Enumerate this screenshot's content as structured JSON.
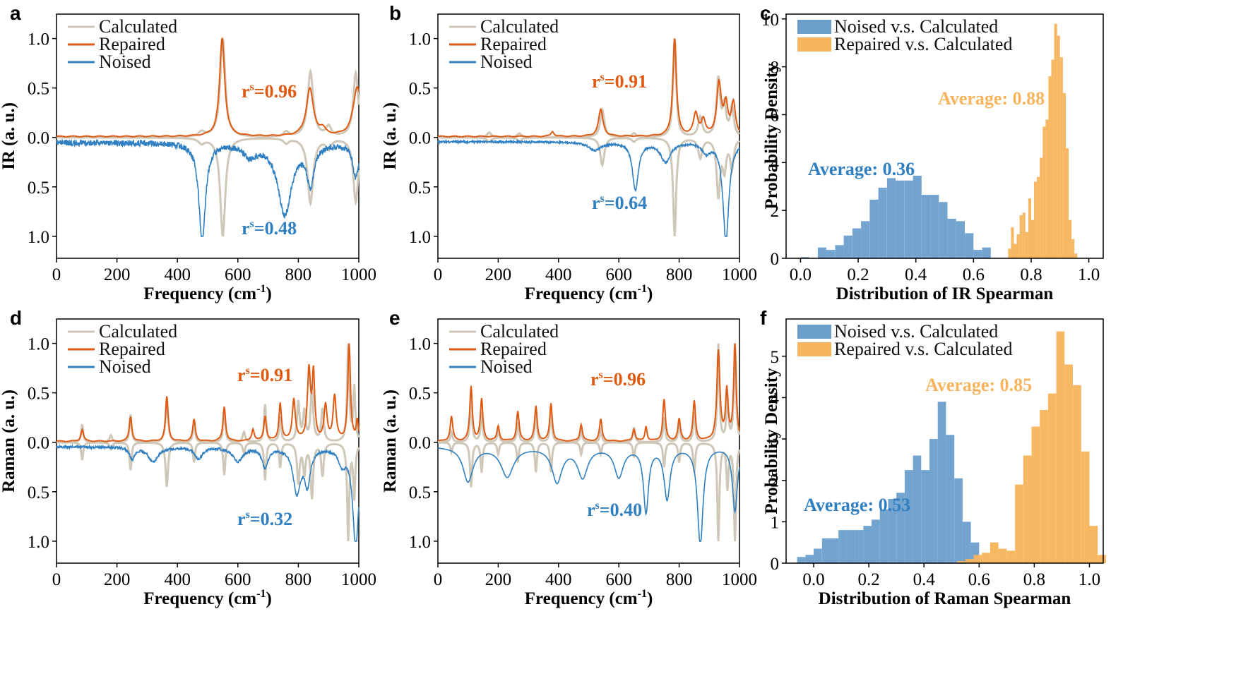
{
  "colors": {
    "calculated": "#cfc8b8",
    "repaired": "#e05a12",
    "noised": "#2f7fc1",
    "hist_noised": "#6c9fcc",
    "hist_repaired": "#f7b45c"
  },
  "chart_data": [
    {
      "id": "a",
      "type": "line",
      "panel_label": "a",
      "xlabel": "Frequency (cm",
      "xlabel_sup": "-1",
      "xlabel_end": ")",
      "ylabel": "IR (a. u.)",
      "xlim": [
        0,
        1000
      ],
      "xticks": [
        "0",
        "200",
        "400",
        "600",
        "800",
        "1000"
      ],
      "yticks": [
        "1.0",
        "0.5",
        "0.0",
        "0.5",
        "1.0"
      ],
      "legend": [
        "Calculated",
        "Repaired",
        "Noised"
      ],
      "annotations": [
        {
          "base": "r",
          "sup": "s",
          "value": "=0.96",
          "series": "repaired"
        },
        {
          "base": "r",
          "sup": "s",
          "value": "=0.48",
          "series": "noised"
        }
      ],
      "calc_peaks": [
        [
          550,
          1.0,
          10
        ],
        [
          840,
          0.66,
          11
        ],
        [
          990,
          0.65,
          10
        ],
        [
          760,
          0.05,
          10
        ],
        [
          480,
          0.05,
          12
        ],
        [
          900,
          0.1,
          10
        ]
      ],
      "rep_peaks": [
        [
          548,
          1.0,
          10
        ],
        [
          838,
          0.48,
          14
        ],
        [
          995,
          0.5,
          16
        ],
        [
          880,
          0.06,
          12
        ]
      ],
      "noise_peaks": [
        [
          482,
          1.0,
          13
        ],
        [
          755,
          0.72,
          28
        ],
        [
          840,
          0.4,
          14
        ],
        [
          990,
          0.35,
          12
        ],
        [
          640,
          0.12,
          25
        ]
      ],
      "noise_level": 0.06
    },
    {
      "id": "b",
      "type": "line",
      "panel_label": "b",
      "xlabel": "Frequency (cm",
      "xlabel_sup": "-1",
      "xlabel_end": ")",
      "ylabel": "IR (a. u.)",
      "xlim": [
        0,
        1000
      ],
      "xticks": [
        "0",
        "200",
        "400",
        "600",
        "800",
        "1000"
      ],
      "yticks": [
        "1.0",
        "0.5",
        "0.0",
        "0.5",
        "1.0"
      ],
      "legend": [
        "Calculated",
        "Repaired",
        "Noised"
      ],
      "annotations": [
        {
          "base": "r",
          "sup": "s",
          "value": "=0.91",
          "series": "repaired"
        },
        {
          "base": "r",
          "sup": "s",
          "value": "=0.64",
          "series": "noised"
        }
      ],
      "calc_peaks": [
        [
          545,
          0.28,
          8
        ],
        [
          785,
          1.0,
          6
        ],
        [
          930,
          0.58,
          7
        ],
        [
          950,
          0.3,
          7
        ],
        [
          975,
          0.3,
          7
        ],
        [
          870,
          0.2,
          8
        ],
        [
          170,
          0.05,
          8
        ],
        [
          270,
          0.04,
          8
        ],
        [
          650,
          0.04,
          8
        ]
      ],
      "rep_peaks": [
        [
          540,
          0.27,
          9
        ],
        [
          785,
          1.0,
          7
        ],
        [
          932,
          0.52,
          9
        ],
        [
          955,
          0.3,
          8
        ],
        [
          980,
          0.32,
          8
        ],
        [
          855,
          0.22,
          9
        ],
        [
          880,
          0.15,
          8
        ],
        [
          380,
          0.05,
          6
        ]
      ],
      "noise_peaks": [
        [
          655,
          0.48,
          12
        ],
        [
          955,
          1.0,
          12
        ],
        [
          755,
          0.2,
          20
        ],
        [
          890,
          0.1,
          15
        ],
        [
          520,
          0.08,
          25
        ]
      ],
      "noise_level": 0.02
    },
    {
      "id": "c",
      "type": "bar",
      "panel_label": "c",
      "xlabel": "Distribution of IR Spearman",
      "ylabel": "Probability Density",
      "xlim": [
        -0.05,
        1.05
      ],
      "ylim": [
        0,
        10.2
      ],
      "xticks": [
        0.0,
        0.2,
        0.4,
        0.6,
        0.8,
        1.0
      ],
      "xtick_labels": [
        "0.0",
        "0.2",
        "0.4",
        "0.6",
        "0.8",
        "1.0"
      ],
      "yticks": [
        0,
        2,
        4,
        6,
        8,
        10
      ],
      "ytick_labels": [
        "0",
        "2",
        "4",
        "6",
        "8",
        "10"
      ],
      "legend": [
        "Noised v.s. Calculated",
        "Repaired v.s. Calculated"
      ],
      "annotations": [
        {
          "text": "Average: 0.36",
          "series": "noised"
        },
        {
          "text": "Average: 0.88",
          "series": "repaired"
        }
      ],
      "series": [
        {
          "name": "Noised v.s. Calculated",
          "bin_start": 0.0,
          "bin_width": 0.03,
          "values": [
            0.05,
            0.0,
            0.45,
            0.35,
            0.55,
            0.95,
            1.25,
            1.55,
            2.45,
            2.95,
            3.35,
            3.25,
            3.25,
            3.45,
            2.65,
            2.65,
            2.35,
            1.65,
            1.55,
            1.05,
            0.35,
            0.45
          ]
        },
        {
          "name": "Repaired v.s. Calculated",
          "bin_start": 0.72,
          "bin_width": 0.01,
          "values": [
            0.4,
            1.3,
            0.6,
            1.0,
            1.8,
            1.9,
            1.1,
            2.5,
            1.6,
            3.2,
            3.4,
            4.2,
            5.5,
            5.8,
            7.6,
            8.3,
            9.8,
            9.3,
            8.4,
            6.9,
            4.6,
            1.6,
            0.8,
            0.2
          ]
        }
      ]
    },
    {
      "id": "d",
      "type": "line",
      "panel_label": "d",
      "xlabel": "Frequency (cm",
      "xlabel_sup": "-1",
      "xlabel_end": ")",
      "ylabel": "Raman (a. u.)",
      "xlim": [
        0,
        1000
      ],
      "xticks": [
        "0",
        "200",
        "400",
        "600",
        "800",
        "1000"
      ],
      "yticks": [
        "1.0",
        "0.5",
        "0.0",
        "0.5",
        "1.0"
      ],
      "legend": [
        "Calculated",
        "Repaired",
        "Noised"
      ],
      "annotations": [
        {
          "base": "r",
          "sup": "s",
          "value": "=0.91",
          "series": "repaired"
        },
        {
          "base": "r",
          "sup": "s",
          "value": "=0.32",
          "series": "noised"
        }
      ],
      "calc_peaks": [
        [
          85,
          0.18,
          4
        ],
        [
          245,
          0.28,
          4
        ],
        [
          365,
          0.45,
          5
        ],
        [
          455,
          0.2,
          4
        ],
        [
          555,
          0.33,
          4
        ],
        [
          690,
          0.38,
          4
        ],
        [
          740,
          0.25,
          4
        ],
        [
          800,
          0.4,
          5
        ],
        [
          820,
          0.3,
          5
        ],
        [
          845,
          0.55,
          5
        ],
        [
          880,
          0.33,
          5
        ],
        [
          965,
          1.0,
          4
        ],
        [
          985,
          0.55,
          4
        ],
        [
          180,
          0.07,
          5
        ],
        [
          620,
          0.1,
          5
        ]
      ],
      "rep_peaks": [
        [
          85,
          0.12,
          5
        ],
        [
          245,
          0.25,
          5
        ],
        [
          365,
          0.45,
          5
        ],
        [
          455,
          0.22,
          5
        ],
        [
          555,
          0.35,
          5
        ],
        [
          650,
          0.12,
          5
        ],
        [
          690,
          0.25,
          5
        ],
        [
          740,
          0.38,
          5
        ],
        [
          785,
          0.42,
          6
        ],
        [
          835,
          0.7,
          6
        ],
        [
          850,
          0.65,
          5
        ],
        [
          890,
          0.35,
          6
        ],
        [
          920,
          0.45,
          6
        ],
        [
          968,
          1.0,
          5
        ],
        [
          995,
          0.2,
          4
        ]
      ],
      "noise_peaks": [
        [
          250,
          0.12,
          10
        ],
        [
          320,
          0.15,
          20
        ],
        [
          470,
          0.12,
          15
        ],
        [
          600,
          0.14,
          20
        ],
        [
          690,
          0.2,
          12
        ],
        [
          795,
          0.45,
          15
        ],
        [
          830,
          0.35,
          12
        ],
        [
          990,
          1.0,
          12
        ],
        [
          945,
          0.15,
          15
        ]
      ],
      "noise_level": 0.025
    },
    {
      "id": "e",
      "type": "line",
      "panel_label": "e",
      "xlabel": "Frequency (cm",
      "xlabel_sup": "-1",
      "xlabel_end": ")",
      "ylabel": "Raman (a. u.)",
      "xlim": [
        0,
        1000
      ],
      "xticks": [
        "0",
        "200",
        "400",
        "600",
        "800",
        "1000"
      ],
      "yticks": [
        "1.0",
        "0.5",
        "0.0",
        "0.5",
        "1.0"
      ],
      "legend": [
        "Calculated",
        "Repaired",
        "Noised"
      ],
      "annotations": [
        {
          "base": "r",
          "sup": "s",
          "value": "=0.96",
          "series": "repaired"
        },
        {
          "base": "r",
          "sup": "s",
          "value": "=0.40",
          "series": "noised"
        }
      ],
      "calc_peaks": [
        [
          45,
          0.1,
          4
        ],
        [
          110,
          0.45,
          4
        ],
        [
          145,
          0.3,
          4
        ],
        [
          200,
          0.12,
          4
        ],
        [
          265,
          0.2,
          4
        ],
        [
          325,
          0.3,
          4
        ],
        [
          375,
          0.3,
          4
        ],
        [
          475,
          0.12,
          4
        ],
        [
          540,
          0.12,
          4
        ],
        [
          650,
          0.15,
          4
        ],
        [
          750,
          0.25,
          4
        ],
        [
          800,
          0.2,
          4
        ],
        [
          850,
          0.3,
          4
        ],
        [
          930,
          1.0,
          4
        ],
        [
          960,
          0.45,
          4
        ],
        [
          985,
          1.0,
          4
        ]
      ],
      "rep_peaks": [
        [
          45,
          0.25,
          5
        ],
        [
          110,
          0.55,
          5
        ],
        [
          145,
          0.42,
          5
        ],
        [
          200,
          0.15,
          5
        ],
        [
          265,
          0.3,
          5
        ],
        [
          325,
          0.35,
          5
        ],
        [
          375,
          0.38,
          5
        ],
        [
          475,
          0.17,
          5
        ],
        [
          540,
          0.22,
          5
        ],
        [
          650,
          0.12,
          5
        ],
        [
          690,
          0.15,
          4
        ],
        [
          750,
          0.42,
          5
        ],
        [
          800,
          0.22,
          5
        ],
        [
          850,
          0.4,
          5
        ],
        [
          930,
          0.9,
          6
        ],
        [
          958,
          0.5,
          5
        ],
        [
          985,
          0.98,
          5
        ]
      ],
      "noise_peaks": [
        [
          100,
          0.35,
          20
        ],
        [
          230,
          0.3,
          25
        ],
        [
          395,
          0.35,
          20
        ],
        [
          480,
          0.3,
          20
        ],
        [
          600,
          0.3,
          18
        ],
        [
          690,
          0.65,
          10
        ],
        [
          760,
          0.52,
          12
        ],
        [
          870,
          1.0,
          11
        ],
        [
          985,
          0.65,
          10
        ]
      ],
      "noise_level": 0.0
    },
    {
      "id": "f",
      "type": "bar",
      "panel_label": "f",
      "xlabel": "Distribution of Raman Spearman",
      "ylabel": "Probability Density",
      "xlim": [
        -0.1,
        1.05
      ],
      "ylim": [
        0,
        5.9
      ],
      "xticks": [
        0.0,
        0.2,
        0.4,
        0.6,
        0.8,
        1.0
      ],
      "xtick_labels": [
        "0.0",
        "0.2",
        "0.4",
        "0.6",
        "0.8",
        "1.0"
      ],
      "yticks": [
        0,
        1,
        2,
        3,
        4,
        5
      ],
      "ytick_labels": [
        "0",
        "1",
        "2",
        "3",
        "4",
        "5"
      ],
      "legend": [
        "Noised v.s. Calculated",
        "Repaired v.s. Calculated"
      ],
      "annotations": [
        {
          "text": "Average: 0.53",
          "series": "noised"
        },
        {
          "text": "Average: 0.85",
          "series": "repaired"
        }
      ],
      "series": [
        {
          "name": "Noised v.s. Calculated",
          "bin_start": -0.06,
          "bin_width": 0.03,
          "values": [
            0.15,
            0.2,
            0.35,
            0.6,
            0.6,
            0.8,
            0.8,
            0.8,
            0.9,
            1.05,
            1.3,
            1.55,
            1.7,
            2.25,
            2.6,
            2.25,
            3.0,
            3.9,
            3.1,
            2.05,
            1.0,
            0.5,
            0.0
          ]
        },
        {
          "name": "Repaired v.s. Calculated",
          "bin_start": 0.46,
          "bin_width": 0.03,
          "values": [
            0.0,
            0.0,
            0.05,
            0.1,
            0.2,
            0.25,
            0.5,
            0.35,
            0.3,
            1.9,
            2.6,
            3.3,
            3.7,
            4.1,
            5.6,
            4.8,
            4.3,
            2.7,
            0.9,
            0.2
          ]
        }
      ]
    }
  ]
}
